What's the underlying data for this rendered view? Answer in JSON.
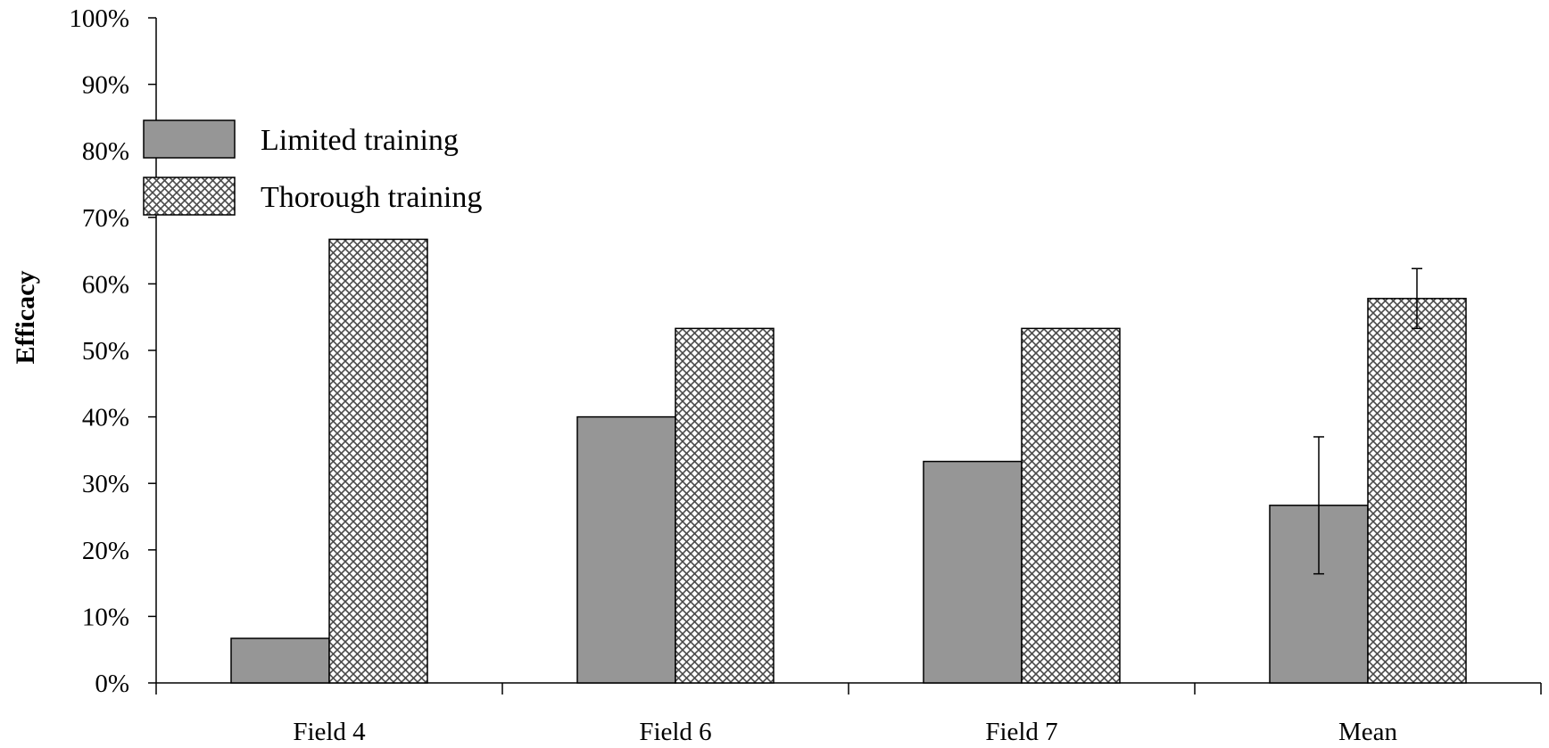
{
  "chart_data": {
    "type": "bar",
    "title": "",
    "xlabel": "",
    "ylabel": "Efficacy",
    "ylim": [
      0,
      1
    ],
    "yticks": [
      "0%",
      "10%",
      "20%",
      "30%",
      "40%",
      "50%",
      "60%",
      "70%",
      "80%",
      "90%",
      "100%"
    ],
    "categories": [
      "Field 4",
      "Field 6",
      "Field 7",
      "Mean"
    ],
    "series": [
      {
        "name": "Limited training",
        "values": [
          0.067,
          0.4,
          0.333,
          0.267
        ],
        "errors": [
          0,
          0,
          0,
          0.103
        ],
        "fill": "solid",
        "color": "#969696"
      },
      {
        "name": "Thorough training",
        "values": [
          0.667,
          0.533,
          0.533,
          0.578
        ],
        "errors": [
          0,
          0,
          0,
          0.045
        ],
        "fill": "crosshatch",
        "color": "#ffffff"
      }
    ],
    "grid": false,
    "legend_position": "top-left"
  }
}
